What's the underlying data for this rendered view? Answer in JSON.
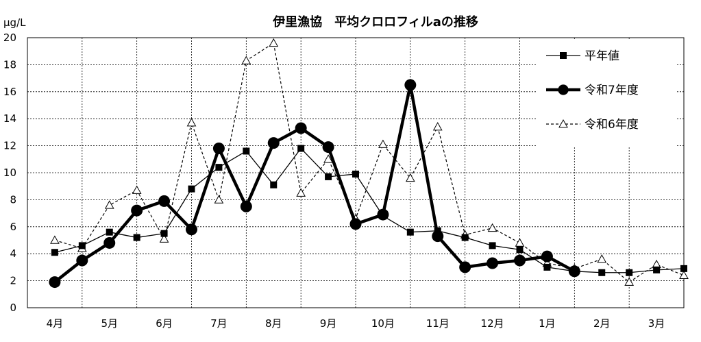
{
  "chart_data": {
    "type": "line",
    "title": "伊里漁協　平均クロロフィルaの推移",
    "unit": "μg/L",
    "ylim": [
      0,
      20
    ],
    "yticks": [
      "0",
      "2",
      "4",
      "6",
      "8",
      "10",
      "12",
      "14",
      "16",
      "18",
      "20"
    ],
    "categories": [
      "4月",
      "5月",
      "6月",
      "7月",
      "8月",
      "9月",
      "10月",
      "11月",
      "12月",
      "1月",
      "2月",
      "3月"
    ],
    "grid": true,
    "legend_position": "top-right",
    "series": [
      {
        "name": "平年値",
        "style": "solid-thin-square",
        "x": [
          0.0,
          0.5,
          1.0,
          1.5,
          2.0,
          2.5,
          3.0,
          3.5,
          4.0,
          4.5,
          5.0,
          5.5,
          6.0,
          6.5,
          7.0,
          7.5,
          8.0,
          8.5,
          9.0,
          9.5,
          10.0,
          10.5,
          11.0,
          11.5
        ],
        "values": [
          4.1,
          4.6,
          5.6,
          5.2,
          5.5,
          8.8,
          10.4,
          11.6,
          9.1,
          11.8,
          9.7,
          9.9,
          6.8,
          5.6,
          5.7,
          5.2,
          4.6,
          4.3,
          3.0,
          2.7,
          2.6,
          2.6,
          2.8,
          2.9
        ]
      },
      {
        "name": "令和7年度",
        "style": "solid-thick-circle",
        "x": [
          0.0,
          0.5,
          1.0,
          1.5,
          2.0,
          2.5,
          3.0,
          3.5,
          4.0,
          4.5,
          5.0,
          5.5,
          6.0,
          6.5,
          7.0,
          7.5,
          8.0,
          8.5,
          9.0,
          9.5
        ],
        "values": [
          1.9,
          3.5,
          4.8,
          7.2,
          7.9,
          5.8,
          11.8,
          7.5,
          12.2,
          13.3,
          11.9,
          6.2,
          6.9,
          16.5,
          5.3,
          3.0,
          3.3,
          3.5,
          3.8,
          2.7
        ]
      },
      {
        "name": "令和6年度",
        "style": "dashed-triangle",
        "x": [
          0.0,
          0.5,
          1.0,
          1.5,
          2.0,
          2.5,
          3.0,
          3.5,
          4.0,
          4.5,
          5.0,
          5.5,
          6.0,
          6.5,
          7.0,
          7.5,
          8.0,
          8.5,
          9.0,
          9.5,
          10.0,
          10.5,
          11.0,
          11.5
        ],
        "values": [
          5.0,
          4.4,
          7.6,
          8.7,
          5.1,
          13.7,
          8.0,
          18.3,
          19.6,
          8.5,
          11.0,
          6.6,
          12.1,
          9.6,
          13.4,
          5.4,
          5.9,
          4.8,
          3.3,
          2.9,
          3.6,
          1.9,
          3.2,
          2.4
        ]
      }
    ]
  }
}
